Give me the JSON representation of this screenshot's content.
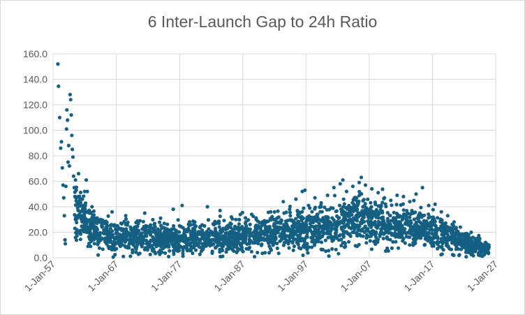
{
  "chart_data": {
    "type": "scatter",
    "title": "6 Inter-Launch Gap to 24h Ratio",
    "xlabel": "",
    "ylabel": "",
    "x_range": [
      "1957-01-01",
      "2027-01-01"
    ],
    "ylim": [
      0,
      160
    ],
    "y_ticks": [
      "0.0",
      "20.0",
      "40.0",
      "60.0",
      "80.0",
      "100.0",
      "120.0",
      "140.0",
      "160.0"
    ],
    "x_ticks": [
      "1-Jan-57",
      "1-Jan-67",
      "1-Jan-77",
      "1-Jan-87",
      "1-Jan-97",
      "1-Jan-07",
      "1-Jan-17",
      "1-Jan-27"
    ],
    "grid": "vertical and horizontal",
    "legend": "none",
    "marker_color": "#156082",
    "series": [
      {
        "points": [
          [
            "1957-10-05",
            152.0
          ],
          [
            "1957-11-10",
            134.5
          ],
          [
            "1958-01-20",
            110.0
          ],
          [
            "1958-03-15",
            86.0
          ],
          [
            "1958-05-01",
            91.0
          ],
          [
            "1958-06-20",
            70.5
          ],
          [
            "1958-08-01",
            57.0
          ],
          [
            "1958-09-10",
            47.0
          ],
          [
            "1958-10-15",
            33.0
          ],
          [
            "1958-11-20",
            14.0
          ],
          [
            "1958-12-10",
            11.0
          ],
          [
            "1959-01-15",
            56.0
          ],
          [
            "1959-02-20",
            101.0
          ],
          [
            "1959-03-10",
            116.0
          ],
          [
            "1959-04-15",
            108.0
          ],
          [
            "1959-05-20",
            75.0
          ],
          [
            "1959-06-25",
            88.0
          ],
          [
            "1959-08-01",
            72.0
          ],
          [
            "1959-09-10",
            128.0
          ],
          [
            "1959-10-15",
            124.0
          ],
          [
            "1959-11-20",
            112.0
          ],
          [
            "1959-12-20",
            96.0
          ],
          [
            "1960-01-20",
            85.0
          ],
          [
            "1960-02-25",
            79.0
          ],
          [
            "1960-04-01",
            64.0
          ],
          [
            "1960-05-10",
            55.0
          ],
          [
            "1960-06-15",
            48.0
          ],
          [
            "1960-07-20",
            61.0
          ],
          [
            "1960-09-01",
            53.0
          ],
          [
            "1960-10-10",
            44.0
          ],
          [
            "1960-11-20",
            39.0
          ],
          [
            "1961-01-10",
            66.0
          ],
          [
            "1961-02-20",
            47.0
          ],
          [
            "1961-04-01",
            42.0
          ],
          [
            "1961-05-15",
            36.0
          ],
          [
            "1961-07-01",
            30.0
          ],
          [
            "1961-08-20",
            46.0
          ],
          [
            "1961-10-10",
            41.0
          ],
          [
            "1961-12-01",
            33.0
          ],
          [
            "1962-02-01",
            38.0
          ],
          [
            "1962-04-01",
            61.0
          ],
          [
            "1962-06-01",
            52.0
          ],
          [
            "1962-08-01",
            29.0
          ],
          [
            "1962-10-01",
            35.0
          ],
          [
            "1962-12-01",
            27.0
          ],
          [
            "1963-03-01",
            40.0
          ],
          [
            "1963-06-01",
            24.0
          ],
          [
            "1963-09-01",
            31.0
          ],
          [
            "1964-01-01",
            22.0
          ],
          [
            "1964-06-01",
            28.0
          ],
          [
            "1965-01-01",
            19.0
          ],
          [
            "1965-08-01",
            25.0
          ],
          [
            "1966-05-01",
            36.0
          ],
          [
            "1967-02-01",
            21.0
          ],
          [
            "1967-10-01",
            27.0
          ],
          [
            "1968-07-01",
            33.0
          ],
          [
            "1969-04-01",
            24.0
          ],
          [
            "1970-01-01",
            18.0
          ],
          [
            "1970-10-01",
            29.0
          ],
          [
            "1971-07-01",
            35.0
          ],
          [
            "1972-04-01",
            22.0
          ],
          [
            "1973-01-01",
            26.0
          ],
          [
            "1974-01-01",
            31.0
          ],
          [
            "1975-01-01",
            20.0
          ],
          [
            "1976-01-01",
            38.0
          ],
          [
            "1977-01-01",
            25.0
          ],
          [
            "1977-06-01",
            41.0
          ],
          [
            "1978-06-01",
            23.0
          ],
          [
            "1979-06-01",
            28.0
          ],
          [
            "1980-06-01",
            19.0
          ],
          [
            "1981-06-01",
            40.0
          ],
          [
            "1982-06-01",
            26.0
          ],
          [
            "1983-06-01",
            37.0
          ],
          [
            "1984-06-01",
            24.0
          ],
          [
            "1985-06-01",
            22.0
          ],
          [
            "1986-06-01",
            30.0
          ],
          [
            "1987-06-01",
            27.0
          ],
          [
            "1988-06-01",
            34.0
          ],
          [
            "1989-06-01",
            25.0
          ],
          [
            "1990-06-01",
            29.0
          ],
          [
            "1991-06-01",
            36.0
          ],
          [
            "1992-06-01",
            31.0
          ],
          [
            "1993-06-01",
            44.0
          ],
          [
            "1994-06-01",
            38.0
          ],
          [
            "1995-06-01",
            46.0
          ],
          [
            "1996-06-01",
            52.0
          ],
          [
            "1996-11-01",
            53.0
          ],
          [
            "1997-06-01",
            41.0
          ],
          [
            "1998-06-01",
            47.0
          ],
          [
            "1999-06-01",
            43.0
          ],
          [
            "2000-06-01",
            49.0
          ],
          [
            "2001-06-01",
            55.0
          ],
          [
            "2002-06-01",
            58.0
          ],
          [
            "2002-11-01",
            61.0
          ],
          [
            "2003-06-01",
            52.0
          ],
          [
            "2004-06-01",
            56.0
          ],
          [
            "2005-06-01",
            59.0
          ],
          [
            "2005-10-01",
            63.0
          ],
          [
            "2006-06-01",
            57.0
          ],
          [
            "2007-06-01",
            54.0
          ],
          [
            "2008-06-01",
            51.0
          ],
          [
            "2009-06-01",
            47.0
          ],
          [
            "2010-06-01",
            45.0
          ],
          [
            "2011-06-01",
            49.0
          ],
          [
            "2012-06-01",
            48.0
          ],
          [
            "2013-06-01",
            44.0
          ],
          [
            "2014-06-01",
            50.0
          ],
          [
            "2015-06-01",
            55.0
          ],
          [
            "2016-06-01",
            41.0
          ],
          [
            "2017-06-01",
            42.0
          ],
          [
            "2018-06-01",
            36.0
          ],
          [
            "2019-06-01",
            33.0
          ],
          [
            "2020-06-01",
            28.0
          ],
          [
            "2021-06-01",
            24.0
          ],
          [
            "2022-06-01",
            19.0
          ],
          [
            "2023-06-01",
            16.0
          ],
          [
            "2024-06-01",
            14.0
          ],
          [
            "2025-06-01",
            12.0
          ],
          [
            "2025-12-01",
            10.0
          ]
        ],
        "density_profile": [
          [
            "1960-06-01",
            40.0,
            12.0
          ],
          [
            "1962-01-01",
            30.0,
            9.0
          ],
          [
            "1964-01-01",
            18.0,
            7.0
          ],
          [
            "1967-01-01",
            15.0,
            6.0
          ],
          [
            "1972-01-01",
            15.0,
            6.0
          ],
          [
            "1977-01-01",
            15.0,
            6.0
          ],
          [
            "1982-01-01",
            16.0,
            6.0
          ],
          [
            "1987-01-01",
            17.0,
            6.5
          ],
          [
            "1992-01-01",
            20.0,
            7.0
          ],
          [
            "1997-01-01",
            22.0,
            8.0
          ],
          [
            "2002-01-01",
            26.0,
            9.0
          ],
          [
            "2005-01-01",
            33.0,
            10.0
          ],
          [
            "2008-01-01",
            28.0,
            9.0
          ],
          [
            "2012-01-01",
            25.0,
            8.0
          ],
          [
            "2016-01-01",
            23.0,
            7.5
          ],
          [
            "2019-01-01",
            18.0,
            6.5
          ],
          [
            "2022-01-01",
            12.0,
            5.0
          ],
          [
            "2024-01-01",
            8.0,
            3.5
          ],
          [
            "2026-01-01",
            6.0,
            2.5
          ]
        ]
      }
    ]
  }
}
